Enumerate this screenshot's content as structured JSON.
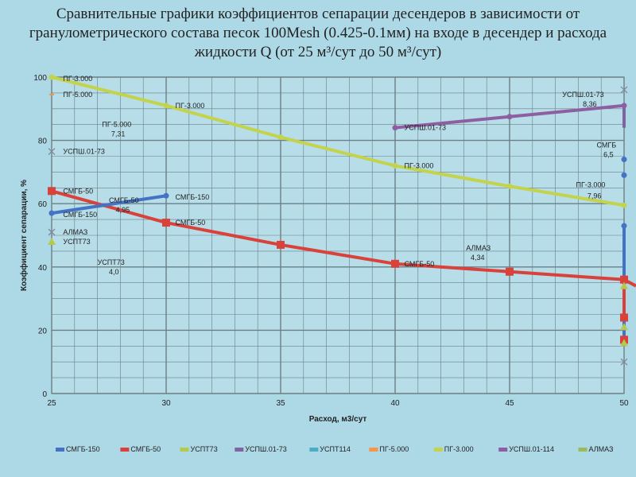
{
  "chart_data": {
    "type": "line",
    "title": "Сравнительные графики коэффициентов сепарации десендеров  в зависимости от гранулометрического  состава песок 100Mesh (0.425-0.1мм) на входе в десендер и расхода жидкости Q (от 25 м³/сут до 50 м³/сут)",
    "title_lines": [
      "Сравнительные графики коэффициентов сепарации десендеров  в зависимости от",
      "гранулометрического  состава песок 100Mesh (0.425-0.1мм) на входе в десендер и расхода",
      "жидкости Q (от 25 м³/сут до 50 м³/сут)"
    ],
    "xlabel": "Расход, м3/сут",
    "ylabel": "Коэффициент сепарации, %",
    "xlim": [
      25,
      50
    ],
    "ylim": [
      0,
      100
    ],
    "xticks": [
      "25",
      "30",
      "35",
      "40",
      "45",
      "50"
    ],
    "yticks": [
      "0",
      "20",
      "40",
      "60",
      "80",
      "100"
    ],
    "grid": true,
    "legend_position": "bottom",
    "series": [
      {
        "name": "СМГБ-150",
        "color": "#4472c4",
        "x": [
          25,
          30
        ],
        "y": [
          57,
          62.5
        ]
      },
      {
        "name": "СМГБ-50",
        "color": "#d9413b",
        "x": [
          25,
          30,
          35,
          40,
          45,
          50
        ],
        "y": [
          64,
          54,
          47,
          41,
          38.5,
          36
        ]
      },
      {
        "name": "УСПТ73",
        "color": "#b5c94a",
        "x": [
          25
        ],
        "y": [
          48
        ]
      },
      {
        "name": "УСПШ.01-73",
        "color": "#8064a2",
        "x": [
          25
        ],
        "y": [
          76.5
        ]
      },
      {
        "name": "УСПТ114",
        "color": "#4bacc6",
        "x": [],
        "y": []
      },
      {
        "name": "ПГ-5.000",
        "color": "#f79646",
        "x": [
          25
        ],
        "y": [
          94.5
        ]
      },
      {
        "name": "ПГ-3.000",
        "color": "#c3d34b",
        "x": [
          25,
          30,
          35,
          40,
          45,
          50
        ],
        "y": [
          100,
          91,
          81,
          72,
          65.5,
          59.5
        ]
      },
      {
        "name": "УСПШ.01-114",
        "color": "#8e5ea2",
        "x": [
          40,
          45,
          50
        ],
        "y": [
          84,
          87.5,
          91
        ]
      },
      {
        "name": "АЛМАЗ",
        "color": "#9bbb59",
        "x": [
          25
        ],
        "y": [
          51
        ]
      }
    ],
    "annotations": [
      {
        "text": "ПГ-3.000",
        "x": 25.5,
        "y": 99.5
      },
      {
        "text": "ПГ-5.000",
        "x": 25.5,
        "y": 94.5
      },
      {
        "text": "ПГ-3.000",
        "x": 30.4,
        "y": 91
      },
      {
        "text": "ПГ-5.000",
        "x": 27.2,
        "y": 85
      },
      {
        "text": "7,31",
        "x": 27.6,
        "y": 82
      },
      {
        "text": "УСПШ.01-73",
        "x": 25.5,
        "y": 76.5
      },
      {
        "text": "СМГБ-50",
        "x": 27.5,
        "y": 61
      },
      {
        "text": "4,95",
        "x": 27.8,
        "y": 58
      },
      {
        "text": "СМГБ-150",
        "x": 30.4,
        "y": 62
      },
      {
        "text": "СМГБ-50",
        "x": 25.5,
        "y": 64
      },
      {
        "text": "СМГБ-150",
        "x": 25.5,
        "y": 56.5
      },
      {
        "text": "СМГБ-50",
        "x": 30.4,
        "y": 54
      },
      {
        "text": "АЛМАЗ",
        "x": 25.5,
        "y": 51
      },
      {
        "text": "УСПТ73",
        "x": 25.5,
        "y": 48
      },
      {
        "text": "УСПТ73",
        "x": 27,
        "y": 41.5
      },
      {
        "text": "4,0",
        "x": 27.5,
        "y": 38.5
      },
      {
        "text": "УСПШ.01-73",
        "x": 40.4,
        "y": 84
      },
      {
        "text": "ПГ-3.000",
        "x": 40.4,
        "y": 72
      },
      {
        "text": "АЛМАЗ",
        "x": 43.1,
        "y": 46
      },
      {
        "text": "4,34",
        "x": 43.3,
        "y": 43
      },
      {
        "text": "СМГБ-50",
        "x": 40.4,
        "y": 41
      },
      {
        "text": "УСПШ.01-73",
        "x": 47.3,
        "y": 94.5
      },
      {
        "text": "8,36",
        "x": 48.2,
        "y": 91.5
      },
      {
        "text": "СМГБ",
        "x": 48.8,
        "y": 78.5
      },
      {
        "text": "6,5",
        "x": 49.1,
        "y": 75.5
      },
      {
        "text": "ПГ-3.000",
        "x": 47.9,
        "y": 66
      },
      {
        "text": "7,96",
        "x": 48.4,
        "y": 62.5
      }
    ]
  }
}
